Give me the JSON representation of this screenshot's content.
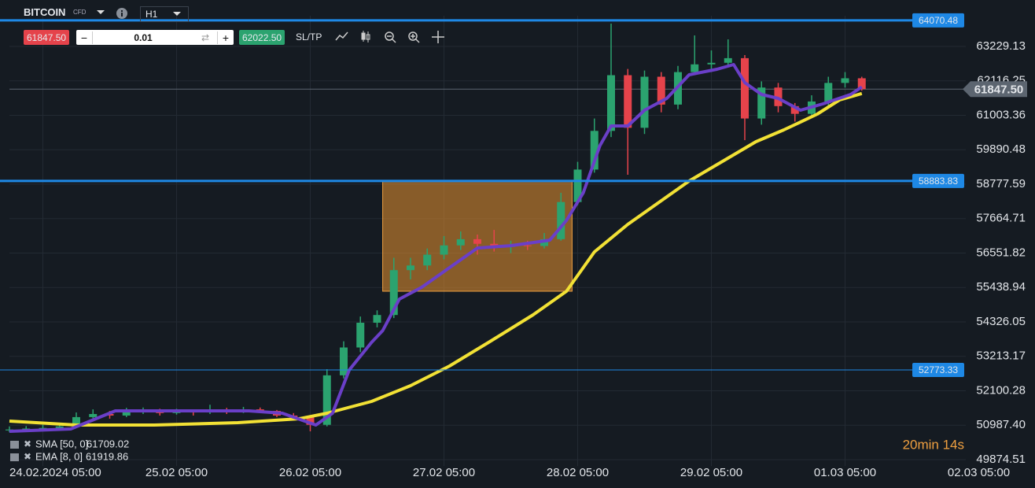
{
  "toolbar": {
    "symbol": "BITCOIN",
    "symbol_type": "CFD",
    "timeframe": "H1",
    "sell": "61847.50",
    "lot": "0.01",
    "buy": "62022.50",
    "sltp": "SL/TP"
  },
  "chart_data": {
    "type": "candlestick",
    "x": [
      -6,
      -3,
      0,
      3,
      6,
      9,
      12,
      15,
      18,
      21,
      24,
      27,
      30,
      33,
      36,
      39,
      42,
      45,
      48,
      51,
      54,
      57,
      60,
      63,
      66,
      69,
      72,
      75,
      78,
      81,
      84,
      87,
      90,
      93,
      96,
      99,
      102,
      105,
      108,
      111,
      114,
      117,
      120,
      123,
      126,
      129,
      132,
      135,
      138,
      141,
      144,
      147
    ],
    "open": [
      50820,
      50850,
      50880,
      50900,
      50950,
      51250,
      51350,
      51300,
      51420,
      51450,
      51380,
      51430,
      51400,
      51470,
      51410,
      51500,
      51450,
      51300,
      51250,
      51000,
      52600,
      53500,
      54300,
      54550,
      56000,
      56150,
      56500,
      56800,
      57000,
      56850,
      56750,
      56800,
      56780,
      57000,
      58200,
      59250,
      60500,
      62300,
      60600,
      62250,
      61350,
      62400,
      62650,
      62700,
      62850,
      60900,
      61900,
      61300,
      61050,
      61450,
      62050,
      62200
    ],
    "high": [
      50950,
      50960,
      51000,
      51050,
      51400,
      51500,
      51450,
      51550,
      51560,
      51520,
      51520,
      51500,
      51650,
      51550,
      51580,
      51560,
      51480,
      51380,
      51300,
      52800,
      53700,
      54500,
      54700,
      56400,
      56400,
      56700,
      57100,
      57250,
      57150,
      57300,
      56950,
      56950,
      57200,
      58500,
      59500,
      60900,
      63967,
      62500,
      62450,
      62400,
      62600,
      63585,
      63100,
      63458,
      62950,
      62100,
      62050,
      61400,
      61650,
      62250,
      62400,
      62250
    ],
    "low": [
      50760,
      50800,
      50820,
      50850,
      50900,
      51180,
      51200,
      51250,
      51350,
      51300,
      51330,
      51300,
      51350,
      51350,
      51380,
      51380,
      51250,
      51150,
      50790,
      50950,
      52500,
      53350,
      54150,
      54450,
      55700,
      56000,
      56350,
      56650,
      56500,
      56600,
      56550,
      56650,
      56700,
      56950,
      58100,
      59150,
      60300,
      59083,
      60400,
      61100,
      61200,
      62300,
      62400,
      62550,
      60200,
      60700,
      61100,
      60800,
      60950,
      61300,
      61900,
      61800
    ],
    "close": [
      50850,
      50880,
      50900,
      50950,
      51250,
      51350,
      51300,
      51420,
      51450,
      51380,
      51430,
      51400,
      51470,
      51410,
      51500,
      51450,
      51300,
      51250,
      51000,
      52600,
      53500,
      54300,
      54550,
      56000,
      56150,
      56500,
      56800,
      57000,
      56850,
      56750,
      56800,
      56780,
      57000,
      58200,
      59250,
      60500,
      62300,
      60600,
      62250,
      61350,
      62400,
      62650,
      62700,
      62850,
      60900,
      61900,
      61300,
      61050,
      61450,
      62050,
      62200,
      61847.5
    ],
    "up_color": "#2ba36f",
    "down_color": "#e5434b",
    "series": [
      {
        "name": "SMA [50, 0]",
        "current": 61709.02,
        "color": "#f2e135",
        "x": [
          -6,
          6,
          20,
          35,
          46,
          51,
          59,
          66,
          73,
          80,
          88,
          94,
          99,
          105,
          111,
          116,
          122,
          128,
          133,
          139,
          143,
          147
        ],
        "values": [
          51121,
          50994,
          50994,
          51070,
          51197,
          51375,
          51757,
          52265,
          52902,
          53665,
          54555,
          55318,
          56590,
          57480,
          58243,
          58879,
          59515,
          60151,
          60533,
          61041,
          61499,
          61709.02
        ]
      },
      {
        "name": "EMA [8, 0]",
        "current": 61919.86,
        "color": "#6a3fc8",
        "x": [
          -6,
          5,
          13,
          28,
          37,
          43,
          49,
          52,
          55,
          59,
          61,
          64,
          68,
          73,
          78,
          84,
          91,
          94,
          97,
          100,
          102,
          105,
          108,
          112,
          116,
          121,
          124,
          126,
          129,
          132,
          136,
          140,
          145,
          147
        ],
        "values": [
          50790,
          50866,
          51451,
          51451,
          51451,
          51375,
          50994,
          51375,
          52774,
          53665,
          54047,
          55064,
          55445,
          56081,
          56715,
          56790,
          56970,
          57607,
          58498,
          60024,
          60660,
          60660,
          61169,
          61550,
          62313,
          62491,
          62644,
          62059,
          61677,
          61550,
          61169,
          61372,
          61677,
          61919.86
        ]
      }
    ],
    "levels": [
      {
        "price": 64070.48,
        "width": 3
      },
      {
        "price": 58883.83,
        "width": 3
      },
      {
        "price": 52773.33,
        "width": 1
      }
    ],
    "current_price": {
      "value": 61847.5,
      "label": "61847.50"
    },
    "zone": {
      "x": [
        61,
        95
      ],
      "y": [
        55318,
        58883.83
      ]
    },
    "timer": "20min 14s",
    "xlim": [
      -6,
      168
    ],
    "xticks": [
      {
        "value": 0,
        "label": "24.02.2024 05:00"
      },
      {
        "value": 24,
        "label": "25.02 05:00"
      },
      {
        "value": 48,
        "label": "26.02 05:00"
      },
      {
        "value": 72,
        "label": "27.02 05:00"
      },
      {
        "value": 96,
        "label": "28.02 05:00"
      },
      {
        "value": 120,
        "label": "29.02 05:00"
      },
      {
        "value": 144,
        "label": "01.03 05:00"
      },
      {
        "value": 168,
        "label": "02.03 05:00"
      }
    ],
    "ylim": [
      49671,
      64221
    ],
    "yticks": [
      49874.51,
      {
        "value": 50987.4,
        "label": "50987.40"
      },
      52100.28,
      53213.17,
      54326.05,
      55438.94,
      56551.82,
      57664.71,
      58777.59,
      59890.48,
      61003.36,
      62116.25,
      63229.13
    ],
    "grid": true
  }
}
